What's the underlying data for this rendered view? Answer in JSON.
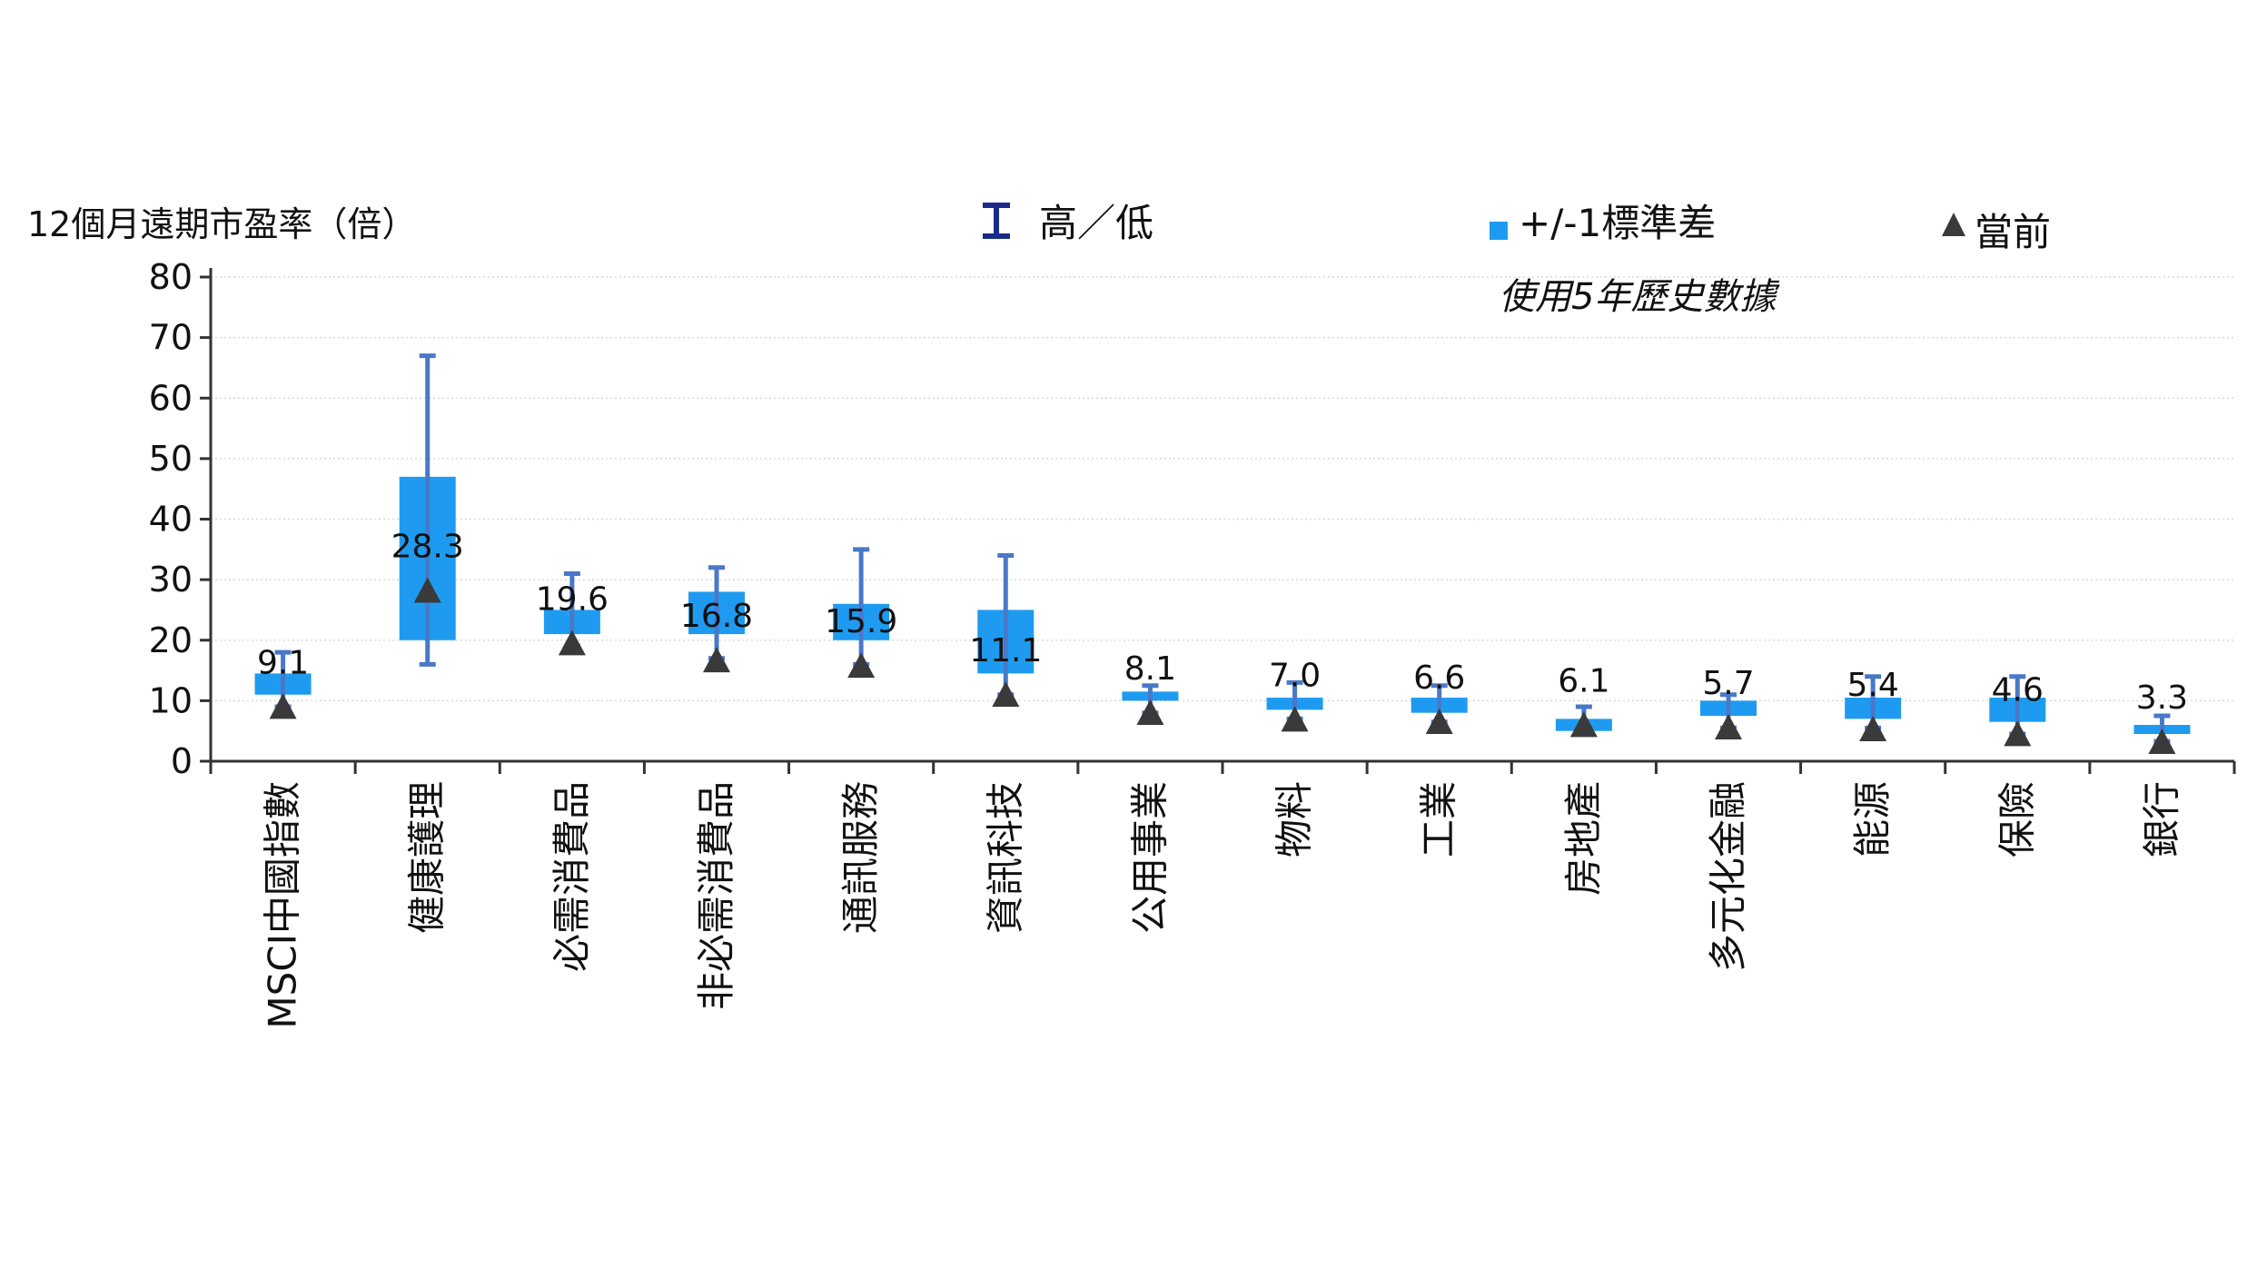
{
  "chart_data": {
    "type": "box",
    "title": "",
    "ylabel": "12個月遠期市盈率（倍）",
    "xlabel": "",
    "ylim": [
      0,
      80
    ],
    "yticks": [
      0,
      10,
      20,
      30,
      40,
      50,
      60,
      70,
      80
    ],
    "grid": true,
    "legend": {
      "placement": "top",
      "items": [
        {
          "label": "高／低",
          "marker": "error-bar-icon"
        },
        {
          "label": "+/-1標準差",
          "marker": "square-icon"
        },
        {
          "label": "當前",
          "marker": "triangle-icon"
        }
      ]
    },
    "note": "使用5年歷史數據",
    "colors": {
      "range_line": "#4a78c9",
      "box": "#1e9bf0",
      "marker": "#3a3a3a",
      "legend_icon": "#1a2a8a",
      "grid": "#d9d9d9",
      "axis": "#333333"
    },
    "categories": [
      "MSCI中國指數",
      "健康護理",
      "必需消費品",
      "非必需消費品",
      "通訊服務",
      "資訊科技",
      "公用事業",
      "物料",
      "工業",
      "房地產",
      "多元化金融",
      "能源",
      "保險",
      "銀行"
    ],
    "series": [
      {
        "name": "高／低",
        "high": [
          18,
          67,
          31,
          32,
          35,
          34,
          12.5,
          13,
          12.5,
          9,
          11,
          14,
          14,
          7.5
        ],
        "low": [
          9,
          16,
          19,
          17,
          16,
          11,
          8,
          7,
          6.5,
          5.5,
          5.5,
          5.5,
          4.5,
          3.3
        ]
      },
      {
        "name": "+/-1標準差",
        "upper": [
          14.5,
          47,
          25,
          28,
          26,
          25,
          11.5,
          10.5,
          10.5,
          7,
          10,
          10.5,
          10.5,
          6
        ],
        "lower": [
          11,
          20,
          21,
          21,
          20,
          14.5,
          10,
          8.5,
          8,
          5,
          7.5,
          7,
          6.5,
          4.5
        ]
      },
      {
        "name": "當前",
        "values": [
          9.1,
          28.3,
          19.6,
          16.8,
          15.9,
          11.1,
          8.1,
          7.0,
          6.6,
          6.1,
          5.7,
          5.4,
          4.6,
          3.3
        ],
        "labels": [
          "9.1",
          "28.3",
          "19.6",
          "16.8",
          "15.9",
          "11.1",
          "8.1",
          "7.0",
          "6.6",
          "6.1",
          "5.7",
          "5.4",
          "4.6",
          "3.3"
        ]
      }
    ]
  }
}
